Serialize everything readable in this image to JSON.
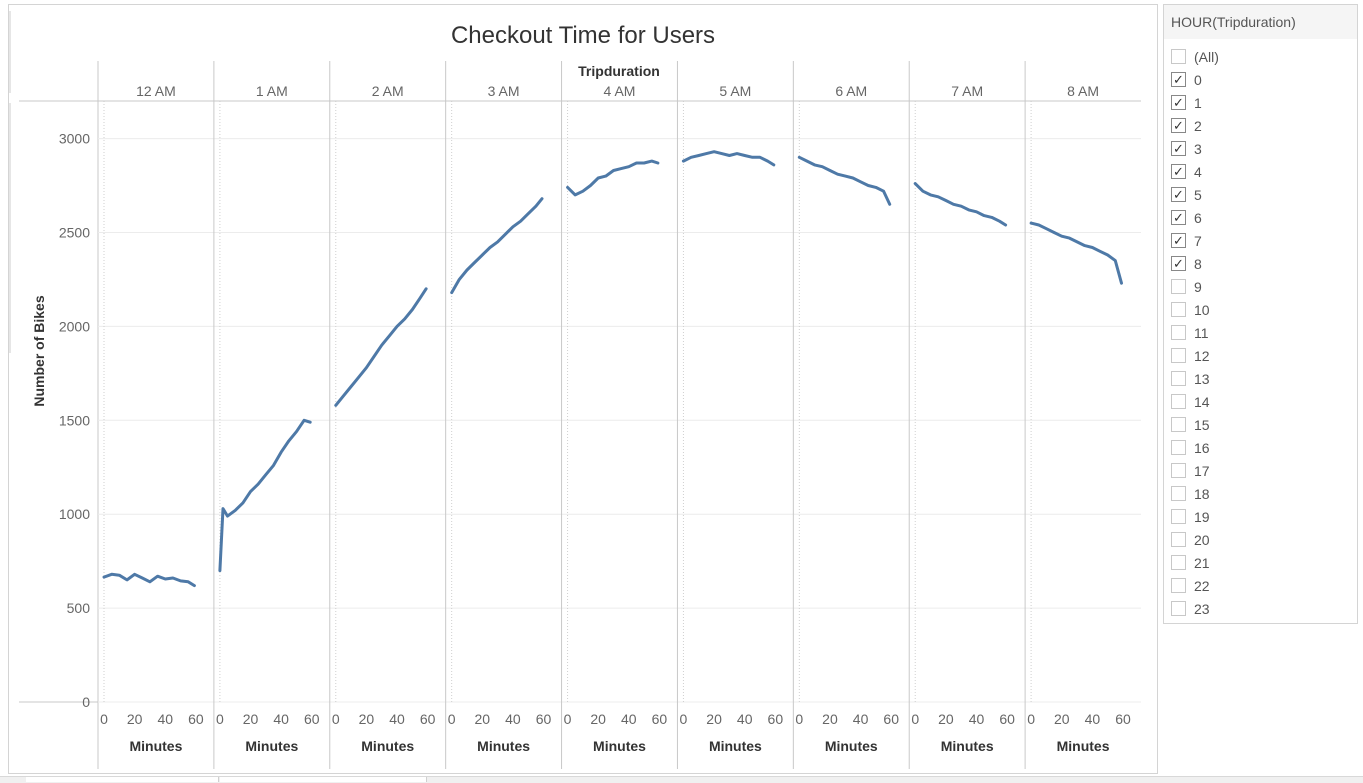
{
  "colors": {
    "line": "#4e79a7",
    "grid": "#ececec",
    "axis": "#c8c8c8"
  },
  "filter": {
    "title": "HOUR(Tripduration)",
    "items": [
      {
        "label": "(All)",
        "checked": false
      },
      {
        "label": "0",
        "checked": true
      },
      {
        "label": "1",
        "checked": true
      },
      {
        "label": "2",
        "checked": true
      },
      {
        "label": "3",
        "checked": true
      },
      {
        "label": "4",
        "checked": true
      },
      {
        "label": "5",
        "checked": true
      },
      {
        "label": "6",
        "checked": true
      },
      {
        "label": "7",
        "checked": true
      },
      {
        "label": "8",
        "checked": true
      },
      {
        "label": "9",
        "checked": false
      },
      {
        "label": "10",
        "checked": false
      },
      {
        "label": "11",
        "checked": false
      },
      {
        "label": "12",
        "checked": false
      },
      {
        "label": "13",
        "checked": false
      },
      {
        "label": "14",
        "checked": false
      },
      {
        "label": "15",
        "checked": false
      },
      {
        "label": "16",
        "checked": false
      },
      {
        "label": "17",
        "checked": false
      },
      {
        "label": "18",
        "checked": false
      },
      {
        "label": "19",
        "checked": false
      },
      {
        "label": "20",
        "checked": false
      },
      {
        "label": "21",
        "checked": false
      },
      {
        "label": "22",
        "checked": false
      },
      {
        "label": "23",
        "checked": false
      }
    ]
  },
  "chart_data": {
    "type": "line",
    "title": "Checkout Time for Users",
    "column_header": "Tripduration",
    "ylabel": "Number of Bikes",
    "xlabel": "Minutes",
    "ylim": [
      0,
      3200
    ],
    "yticks": [
      0,
      500,
      1000,
      1500,
      2000,
      2500,
      3000
    ],
    "xlim": [
      0,
      60
    ],
    "xticks": [
      0,
      20,
      40,
      60
    ],
    "grid": true,
    "panels": [
      {
        "label": "12 AM",
        "x": [
          0,
          5,
          10,
          15,
          20,
          25,
          30,
          35,
          40,
          45,
          50,
          55,
          59
        ],
        "y": [
          665,
          680,
          675,
          650,
          680,
          660,
          640,
          670,
          655,
          660,
          645,
          640,
          620
        ]
      },
      {
        "label": "1 AM",
        "x": [
          0,
          2,
          5,
          10,
          15,
          20,
          25,
          30,
          35,
          40,
          45,
          50,
          55,
          59
        ],
        "y": [
          700,
          1030,
          990,
          1020,
          1060,
          1120,
          1160,
          1210,
          1260,
          1330,
          1390,
          1440,
          1500,
          1490
        ]
      },
      {
        "label": "2 AM",
        "x": [
          0,
          5,
          10,
          15,
          20,
          25,
          30,
          35,
          40,
          45,
          50,
          55,
          59
        ],
        "y": [
          1580,
          1630,
          1680,
          1730,
          1780,
          1840,
          1900,
          1950,
          2000,
          2040,
          2090,
          2150,
          2200
        ]
      },
      {
        "label": "3 AM",
        "x": [
          0,
          5,
          10,
          15,
          20,
          25,
          30,
          35,
          40,
          45,
          50,
          55,
          59
        ],
        "y": [
          2180,
          2250,
          2300,
          2340,
          2380,
          2420,
          2450,
          2490,
          2530,
          2560,
          2600,
          2640,
          2680
        ]
      },
      {
        "label": "4 AM",
        "x": [
          0,
          5,
          10,
          15,
          20,
          25,
          30,
          35,
          40,
          45,
          50,
          55,
          59
        ],
        "y": [
          2740,
          2700,
          2720,
          2750,
          2790,
          2800,
          2830,
          2840,
          2850,
          2870,
          2870,
          2880,
          2870
        ]
      },
      {
        "label": "5 AM",
        "x": [
          0,
          5,
          10,
          15,
          20,
          25,
          30,
          35,
          40,
          45,
          50,
          55,
          59
        ],
        "y": [
          2880,
          2900,
          2910,
          2920,
          2930,
          2920,
          2910,
          2920,
          2910,
          2900,
          2900,
          2880,
          2860
        ]
      },
      {
        "label": "6 AM",
        "x": [
          0,
          5,
          10,
          15,
          20,
          25,
          30,
          35,
          40,
          45,
          50,
          55,
          59
        ],
        "y": [
          2900,
          2880,
          2860,
          2850,
          2830,
          2810,
          2800,
          2790,
          2770,
          2750,
          2740,
          2720,
          2650
        ]
      },
      {
        "label": "7 AM",
        "x": [
          0,
          5,
          10,
          15,
          20,
          25,
          30,
          35,
          40,
          45,
          50,
          55,
          59
        ],
        "y": [
          2760,
          2720,
          2700,
          2690,
          2670,
          2650,
          2640,
          2620,
          2610,
          2590,
          2580,
          2560,
          2540
        ]
      },
      {
        "label": "8 AM",
        "x": [
          0,
          5,
          10,
          15,
          20,
          25,
          30,
          35,
          40,
          45,
          50,
          55,
          59
        ],
        "y": [
          2550,
          2540,
          2520,
          2500,
          2480,
          2470,
          2450,
          2430,
          2420,
          2400,
          2380,
          2350,
          2230
        ]
      }
    ]
  }
}
